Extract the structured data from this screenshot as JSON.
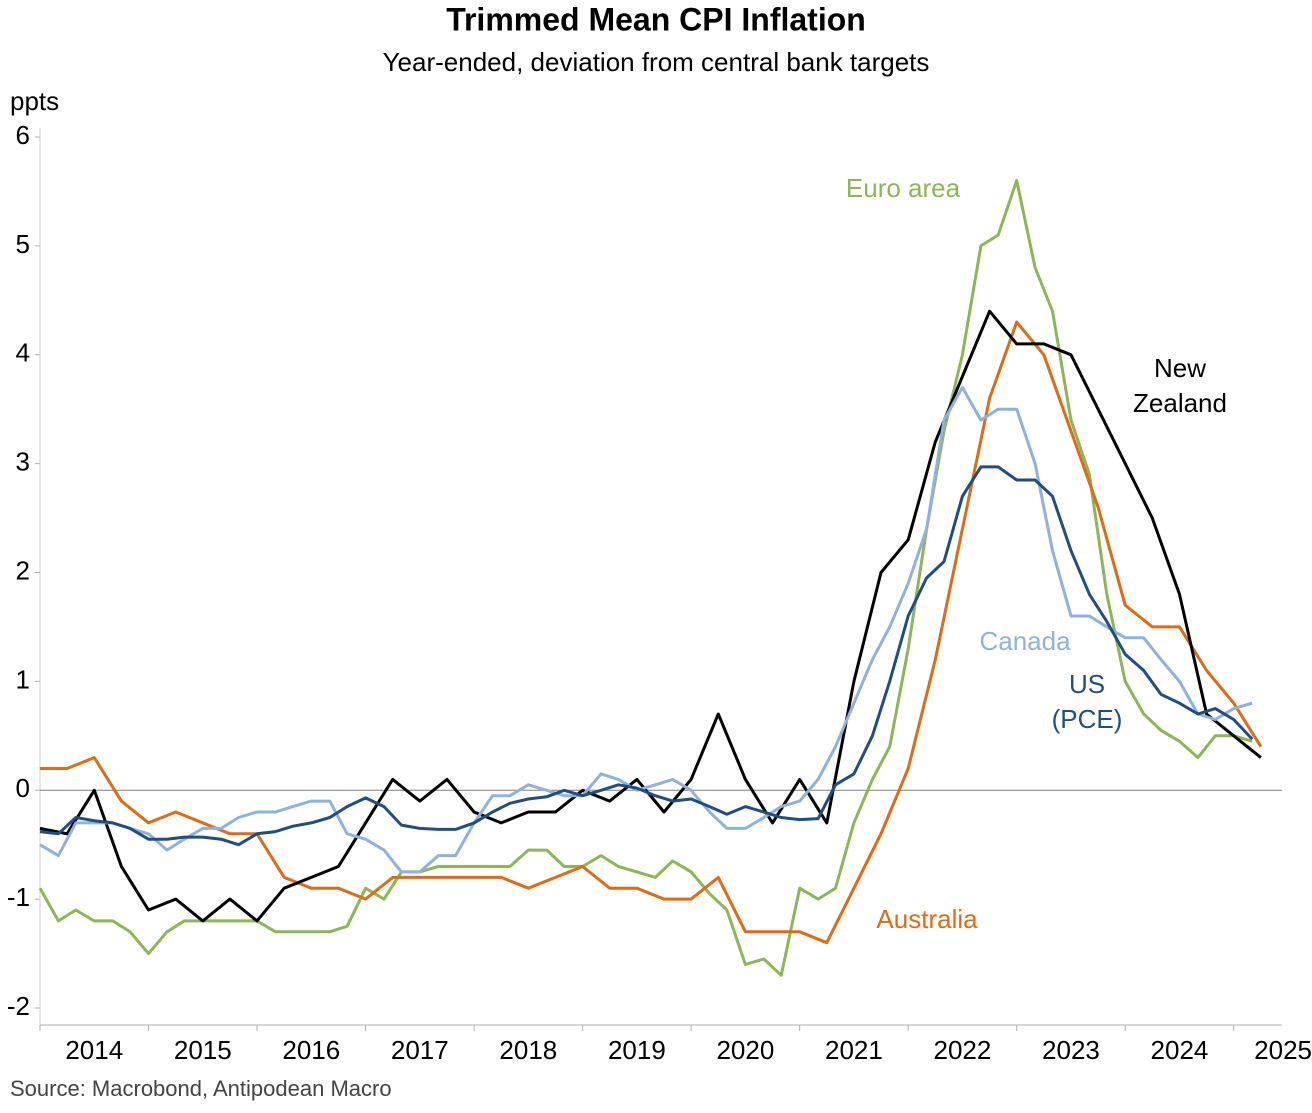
{
  "chart_data": {
    "type": "line",
    "title": "Trimmed Mean CPI Inflation",
    "subtitle": "Year-ended, deviation from central bank targets",
    "y_label": "ppts",
    "source": "Source: Macrobond, Antipodean Macro",
    "xlim": [
      2014,
      2025.5
    ],
    "xticks": [
      2014,
      2015,
      2016,
      2017,
      2018,
      2019,
      2020,
      2021,
      2022,
      2023,
      2024,
      2025
    ],
    "ylim": [
      -2,
      6
    ],
    "yticks": [
      -2,
      -1,
      0,
      1,
      2,
      3,
      4,
      5,
      6
    ],
    "x": [
      2014,
      2014.17,
      2014.33,
      2014.5,
      2014.67,
      2014.83,
      2015,
      2015.17,
      2015.33,
      2015.5,
      2015.67,
      2015.83,
      2016,
      2016.17,
      2016.33,
      2016.5,
      2016.67,
      2016.83,
      2017,
      2017.17,
      2017.33,
      2017.5,
      2017.67,
      2017.83,
      2018,
      2018.17,
      2018.33,
      2018.5,
      2018.67,
      2018.83,
      2019,
      2019.17,
      2019.33,
      2019.5,
      2019.67,
      2019.83,
      2020,
      2020.17,
      2020.33,
      2020.5,
      2020.67,
      2020.83,
      2021,
      2021.17,
      2021.33,
      2021.5,
      2021.67,
      2021.83,
      2022,
      2022.17,
      2022.33,
      2022.5,
      2022.67,
      2022.83,
      2023,
      2023.17,
      2023.33,
      2023.5,
      2023.67,
      2023.83,
      2024,
      2024.17,
      2024.33,
      2024.5,
      2024.67,
      2024.83,
      2025,
      2025.17
    ],
    "series": [
      {
        "name": [
          "Euro area"
        ],
        "color": "#8db655",
        "values": [
          -0.9,
          -1.2,
          -1.1,
          -1.2,
          -1.2,
          -1.3,
          -1.5,
          -1.3,
          -1.2,
          -1.2,
          -1.2,
          -1.2,
          -1.2,
          -1.3,
          -1.3,
          -1.3,
          -1.3,
          -1.25,
          -0.9,
          -1,
          -0.75,
          -0.75,
          -0.7,
          -0.7,
          -0.7,
          -0.7,
          -0.7,
          -0.55,
          -0.55,
          -0.7,
          -0.7,
          -0.6,
          -0.7,
          -0.75,
          -0.8,
          -0.65,
          -0.75,
          -0.95,
          -1.1,
          -1.6,
          -1.55,
          -1.7,
          -0.9,
          -1,
          -0.9,
          -0.3,
          0.1,
          0.4,
          1.3,
          2.4,
          3.3,
          4,
          5,
          5.1,
          5.6,
          4.8,
          4.4,
          3.4,
          2.9,
          1.8,
          1,
          0.7,
          0.55,
          0.45,
          0.3,
          0.5,
          0.5,
          0.45
        ]
      },
      {
        "name": [
          "Australia"
        ],
        "color": "#e06b12",
        "x": [
          2014,
          2014.25,
          2014.5,
          2014.75,
          2015,
          2015.25,
          2015.5,
          2015.75,
          2016,
          2016.25,
          2016.5,
          2016.75,
          2017,
          2017.25,
          2017.5,
          2017.75,
          2018,
          2018.25,
          2018.5,
          2018.75,
          2019,
          2019.25,
          2019.5,
          2019.75,
          2020,
          2020.25,
          2020.5,
          2020.75,
          2021,
          2021.25,
          2021.5,
          2021.75,
          2022,
          2022.25,
          2022.5,
          2022.75,
          2023,
          2023.25,
          2023.5,
          2023.75,
          2024,
          2024.25,
          2024.5,
          2024.75,
          2025,
          2025.25
        ],
        "values": [
          0.2,
          0.2,
          0.3,
          -0.1,
          -0.3,
          -0.2,
          -0.3,
          -0.4,
          -0.4,
          -0.8,
          -0.9,
          -0.9,
          -1,
          -0.8,
          -0.8,
          -0.8,
          -0.8,
          -0.8,
          -0.9,
          -0.8,
          -0.7,
          -0.9,
          -0.9,
          -1,
          -1,
          -0.8,
          -1.3,
          -1.3,
          -1.3,
          -1.4,
          -0.9,
          -0.4,
          0.2,
          1.2,
          2.4,
          3.6,
          4.3,
          4,
          3.3,
          2.6,
          1.7,
          1.5,
          1.5,
          1.1,
          0.8,
          0.4
        ]
      },
      {
        "name": [
          "New",
          "Zealand"
        ],
        "color": "#000000",
        "x": [
          2014,
          2014.25,
          2014.5,
          2014.75,
          2015,
          2015.25,
          2015.5,
          2015.75,
          2016,
          2016.25,
          2016.5,
          2016.75,
          2017,
          2017.25,
          2017.5,
          2017.75,
          2018,
          2018.25,
          2018.5,
          2018.75,
          2019,
          2019.25,
          2019.5,
          2019.75,
          2020,
          2020.25,
          2020.5,
          2020.75,
          2021,
          2021.25,
          2021.5,
          2021.75,
          2022,
          2022.25,
          2022.5,
          2022.75,
          2023,
          2023.25,
          2023.5,
          2023.75,
          2024,
          2024.25,
          2024.5,
          2024.75,
          2025,
          2025.25
        ],
        "values": [
          -0.35,
          -0.4,
          0,
          -0.7,
          -1.1,
          -1,
          -1.2,
          -1,
          -1.2,
          -0.9,
          -0.8,
          -0.7,
          -0.3,
          0.1,
          -0.1,
          0.1,
          -0.2,
          -0.3,
          -0.2,
          -0.2,
          0,
          -0.1,
          0.1,
          -0.2,
          0.1,
          0.7,
          0.1,
          -0.3,
          0.1,
          -0.3,
          1,
          2,
          2.3,
          3.2,
          3.8,
          4.4,
          4.1,
          4.1,
          4,
          3.5,
          3,
          2.5,
          1.8,
          0.7,
          0.5,
          0.3
        ]
      },
      {
        "name": [
          "Canada"
        ],
        "color": "#8eb2e0",
        "values": [
          -0.5,
          -0.6,
          -0.3,
          -0.3,
          -0.3,
          -0.35,
          -0.4,
          -0.55,
          -0.45,
          -0.35,
          -0.35,
          -0.25,
          -0.2,
          -0.2,
          -0.15,
          -0.1,
          -0.1,
          -0.4,
          -0.45,
          -0.55,
          -0.75,
          -0.75,
          -0.6,
          -0.6,
          -0.3,
          -0.05,
          -0.05,
          0.05,
          0,
          -0.05,
          -0.05,
          0.15,
          0.1,
          0,
          0.05,
          0.1,
          0,
          -0.2,
          -0.35,
          -0.35,
          -0.25,
          -0.15,
          -0.1,
          0.1,
          0.4,
          0.8,
          1.2,
          1.5,
          1.9,
          2.4,
          3.4,
          3.7,
          3.4,
          3.5,
          3.5,
          3,
          2.2,
          1.6,
          1.6,
          1.5,
          1.4,
          1.4,
          1.2,
          1,
          0.7,
          0.65,
          0.75,
          0.8
        ]
      },
      {
        "name": [
          "US",
          "(PCE)"
        ],
        "color": "#1f4e85",
        "values": [
          -0.38,
          -0.4,
          -0.25,
          -0.28,
          -0.3,
          -0.35,
          -0.45,
          -0.45,
          -0.43,
          -0.43,
          -0.45,
          -0.5,
          -0.4,
          -0.38,
          -0.33,
          -0.3,
          -0.25,
          -0.15,
          -0.07,
          -0.15,
          -0.32,
          -0.35,
          -0.36,
          -0.36,
          -0.3,
          -0.2,
          -0.12,
          -0.08,
          -0.06,
          0,
          -0.05,
          0,
          0.05,
          0.02,
          -0.05,
          -0.1,
          -0.08,
          -0.15,
          -0.22,
          -0.15,
          -0.2,
          -0.25,
          -0.27,
          -0.26,
          0.05,
          0.15,
          0.5,
          1,
          1.6,
          1.95,
          2.1,
          2.7,
          2.97,
          2.97,
          2.85,
          2.85,
          2.7,
          2.2,
          1.8,
          1.55,
          1.25,
          1.1,
          0.88,
          0.8,
          0.7,
          0.75,
          0.65,
          0.47
        ]
      }
    ]
  }
}
